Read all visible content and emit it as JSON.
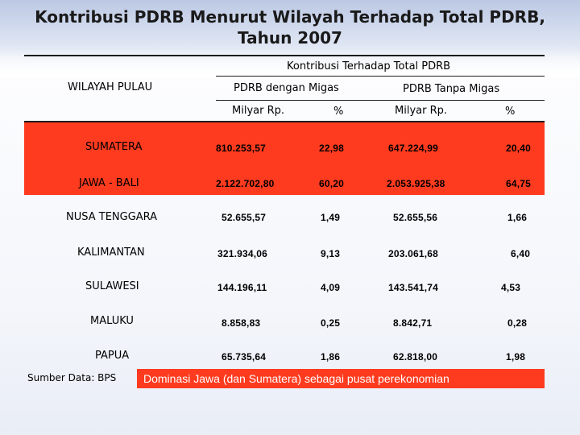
{
  "title": "Kontribusi PDRB Menurut Wilayah Terhadap Total PDRB, Tahun 2007",
  "header": {
    "group_label": "Kontribusi Terhadap Total PDRB",
    "region_col": "WILAYAH PULAU",
    "migas_label": "PDRB dengan Migas",
    "tanpa_migas_label": "PDRB Tanpa Migas",
    "unit_milyar_1": "Milyar Rp.",
    "unit_pct_1": "%",
    "unit_milyar_2": "Milyar Rp.",
    "unit_pct_2": "%"
  },
  "rows": [
    {
      "region": "SUMATERA",
      "migas_rp": "810.253,57",
      "migas_pct": "22,98",
      "tanpa_rp": "647.224,99",
      "tanpa_pct": "20,40",
      "highlight": true
    },
    {
      "region": "JAWA - BALI",
      "migas_rp": "2.122.702,80",
      "migas_pct": "60,20",
      "tanpa_rp": "2.053.925,38",
      "tanpa_pct": "64,75",
      "highlight": true
    },
    {
      "region": "NUSA TENGGARA",
      "migas_rp": "52.655,57",
      "migas_pct": "1,49",
      "tanpa_rp": "52.655,56",
      "tanpa_pct": "1,66",
      "highlight": false
    },
    {
      "region": "KALIMANTAN",
      "migas_rp": "321.934,06",
      "migas_pct": "9,13",
      "tanpa_rp": "203.061,68",
      "tanpa_pct": "6,40",
      "highlight": false
    },
    {
      "region": "SULAWESI",
      "migas_rp": "144.196,11",
      "migas_pct": "4,09",
      "tanpa_rp": "143.541,74",
      "tanpa_pct": "4,53",
      "highlight": false
    },
    {
      "region": "MALUKU",
      "migas_rp": "8.858,83",
      "migas_pct": "0,25",
      "tanpa_rp": "8.842,71",
      "tanpa_pct": "0,28",
      "highlight": false
    },
    {
      "region": "PAPUA",
      "migas_rp": "65.735,64",
      "migas_pct": "1,86",
      "tanpa_rp": "62.818,00",
      "tanpa_pct": "1,98",
      "highlight": false
    }
  ],
  "footer": {
    "source": "Sumber Data: BPS",
    "note": "Dominasi Jawa (dan Sumatera) sebagai pusat perekonomian"
  },
  "colors": {
    "highlight": "#ff3b1f",
    "banner": "#bcc8e4"
  }
}
